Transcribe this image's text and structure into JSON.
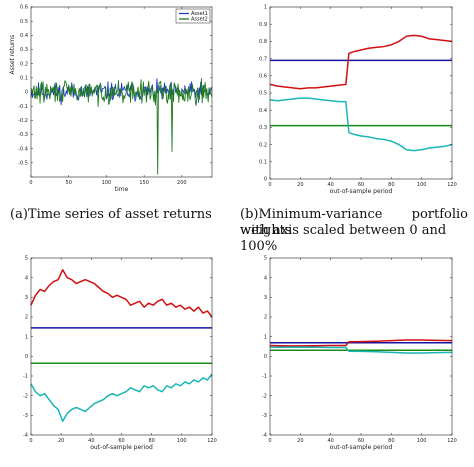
{
  "captions": {
    "a": "(a)Time series of asset returns",
    "b_line1": "(b)Minimum-variance portfolio weights",
    "b_line2": "with axis scaled between 0 and 100%"
  },
  "chart_data": [
    {
      "id": "a",
      "type": "line",
      "xlabel": "time",
      "ylabel": "Asset returns",
      "xlim": [
        0,
        240
      ],
      "ylim": [
        -0.6,
        0.6
      ],
      "xticks": [
        0,
        50,
        100,
        150,
        200
      ],
      "yticks": [
        0.6,
        0.5,
        0.4,
        0.3,
        0.2,
        0.1,
        0,
        -0.1,
        -0.2,
        -0.3,
        -0.4,
        -0.5,
        -0.6
      ],
      "ytick_labels": [
        "0.6",
        "0.5",
        "0.4",
        "0.3",
        "0.2",
        "0.1",
        "0",
        "-0.1",
        "-0.2",
        "-0.3",
        "-0.4",
        "-0.5",
        ""
      ],
      "legend": [
        "Asset1",
        "Asset2"
      ],
      "legend_position": "top-right",
      "series": [
        {
          "name": "Asset1",
          "color": "#1f3fbf",
          "noise": 0.055,
          "seed": 11
        },
        {
          "name": "Asset2",
          "color": "#1e7a1e",
          "noise": 0.065,
          "seed": 29,
          "spikes": [
            [
              168,
              -0.58
            ],
            [
              187,
              -0.42
            ]
          ]
        }
      ]
    },
    {
      "id": "b",
      "type": "line",
      "xlabel": "out-of-sample period",
      "ylabel": "",
      "xlim": [
        0,
        120
      ],
      "ylim": [
        0,
        1
      ],
      "xticks": [
        0,
        20,
        40,
        60,
        80,
        100,
        120
      ],
      "yticks": [
        1,
        0.9,
        0.8,
        0.7,
        0.6,
        0.5,
        0.4,
        0.3,
        0.2,
        0.1,
        0
      ],
      "ytick_labels": [
        "1",
        "0.9",
        "0.8",
        "0.7",
        "0.6",
        "0.5",
        "0.4",
        "0.3",
        "0.2",
        "0.1",
        "0"
      ],
      "series": [
        {
          "name": "",
          "color": "#1414a0",
          "x": [
            0,
            120
          ],
          "y": [
            0.69,
            0.69
          ]
        },
        {
          "name": "",
          "color": "#1a8a1a",
          "x": [
            0,
            120
          ],
          "y": [
            0.31,
            0.31
          ]
        },
        {
          "name": "",
          "color": "#d01010",
          "x": [
            0,
            5,
            10,
            15,
            20,
            25,
            30,
            35,
            40,
            45,
            50,
            52,
            55,
            60,
            65,
            70,
            75,
            80,
            85,
            90,
            95,
            100,
            105,
            110,
            115,
            120
          ],
          "y": [
            0.55,
            0.54,
            0.535,
            0.53,
            0.525,
            0.53,
            0.53,
            0.535,
            0.54,
            0.545,
            0.55,
            0.73,
            0.74,
            0.75,
            0.76,
            0.765,
            0.77,
            0.78,
            0.8,
            0.83,
            0.835,
            0.83,
            0.815,
            0.81,
            0.805,
            0.8
          ]
        },
        {
          "name": "",
          "color": "#1ab5b5",
          "x": [
            0,
            5,
            10,
            15,
            20,
            25,
            30,
            35,
            40,
            45,
            50,
            52,
            55,
            60,
            65,
            70,
            75,
            80,
            85,
            90,
            95,
            100,
            105,
            110,
            115,
            120
          ],
          "y": [
            0.46,
            0.455,
            0.46,
            0.465,
            0.47,
            0.47,
            0.465,
            0.46,
            0.455,
            0.45,
            0.45,
            0.27,
            0.26,
            0.25,
            0.245,
            0.235,
            0.23,
            0.22,
            0.2,
            0.17,
            0.165,
            0.17,
            0.18,
            0.185,
            0.19,
            0.2
          ]
        }
      ]
    },
    {
      "id": "c",
      "type": "line",
      "xlabel": "out-of-sample period",
      "ylabel": "",
      "xlim": [
        0,
        120
      ],
      "ylim": [
        -4,
        5
      ],
      "xticks": [
        0,
        20,
        40,
        60,
        80,
        100,
        120
      ],
      "yticks": [
        5,
        4,
        3,
        2,
        1,
        0,
        -1,
        -2,
        -3,
        -4
      ],
      "ytick_labels": [
        "5",
        "4",
        "3",
        "2",
        "1",
        "0",
        "-1",
        "-2",
        "-3",
        "-4"
      ],
      "series": [
        {
          "name": "",
          "color": "#1414a0",
          "x": [
            0,
            120
          ],
          "y": [
            1.45,
            1.45
          ]
        },
        {
          "name": "",
          "color": "#1a8a1a",
          "x": [
            0,
            120
          ],
          "y": [
            -0.35,
            -0.35
          ]
        },
        {
          "name": "",
          "color": "#d01010",
          "x": [
            0,
            3,
            6,
            9,
            12,
            15,
            18,
            21,
            24,
            27,
            30,
            33,
            36,
            39,
            42,
            45,
            48,
            51,
            54,
            57,
            60,
            63,
            66,
            69,
            72,
            75,
            78,
            81,
            84,
            87,
            90,
            93,
            96,
            99,
            102,
            105,
            108,
            111,
            114,
            117,
            120
          ],
          "y": [
            2.6,
            3.1,
            3.4,
            3.3,
            3.6,
            3.8,
            3.9,
            4.4,
            4.0,
            3.9,
            3.7,
            3.8,
            3.9,
            3.8,
            3.7,
            3.5,
            3.3,
            3.2,
            3.0,
            3.1,
            3.0,
            2.9,
            2.6,
            2.7,
            2.8,
            2.5,
            2.7,
            2.6,
            2.8,
            2.9,
            2.6,
            2.7,
            2.5,
            2.6,
            2.4,
            2.5,
            2.3,
            2.5,
            2.2,
            2.3,
            2.0
          ]
        },
        {
          "name": "",
          "color": "#1ab5b5",
          "x": [
            0,
            3,
            6,
            9,
            12,
            15,
            18,
            21,
            24,
            27,
            30,
            33,
            36,
            39,
            42,
            45,
            48,
            51,
            54,
            57,
            60,
            63,
            66,
            69,
            72,
            75,
            78,
            81,
            84,
            87,
            90,
            93,
            96,
            99,
            102,
            105,
            108,
            111,
            114,
            117,
            120
          ],
          "y": [
            -1.4,
            -1.8,
            -2.0,
            -1.9,
            -2.2,
            -2.5,
            -2.7,
            -3.3,
            -2.9,
            -2.7,
            -2.6,
            -2.7,
            -2.8,
            -2.6,
            -2.4,
            -2.3,
            -2.2,
            -2.0,
            -1.9,
            -2.0,
            -1.9,
            -1.8,
            -1.6,
            -1.7,
            -1.8,
            -1.5,
            -1.6,
            -1.5,
            -1.7,
            -1.8,
            -1.5,
            -1.6,
            -1.4,
            -1.5,
            -1.3,
            -1.4,
            -1.2,
            -1.3,
            -1.1,
            -1.2,
            -0.9
          ]
        }
      ]
    },
    {
      "id": "d",
      "type": "line",
      "xlabel": "out-of-sample period",
      "ylabel": "",
      "xlim": [
        0,
        120
      ],
      "ylim": [
        -4,
        5
      ],
      "xticks": [
        0,
        20,
        40,
        60,
        80,
        100,
        120
      ],
      "yticks": [
        5,
        4,
        3,
        2,
        1,
        0,
        -1,
        -2,
        -3,
        -4
      ],
      "ytick_labels": [
        "5",
        "4",
        "3",
        "2",
        "1",
        "0",
        "-1",
        "-2",
        "-3",
        "-4"
      ],
      "series": [
        {
          "name": "",
          "color": "#1414a0",
          "x": [
            0,
            120
          ],
          "y": [
            0.69,
            0.69
          ]
        },
        {
          "name": "",
          "color": "#1a8a1a",
          "x": [
            0,
            120
          ],
          "y": [
            0.31,
            0.31
          ]
        },
        {
          "name": "",
          "color": "#d01010",
          "x": [
            0,
            10,
            20,
            30,
            40,
            50,
            52,
            60,
            70,
            80,
            90,
            100,
            110,
            120
          ],
          "y": [
            0.55,
            0.53,
            0.53,
            0.54,
            0.55,
            0.55,
            0.74,
            0.75,
            0.77,
            0.8,
            0.83,
            0.83,
            0.81,
            0.8
          ]
        },
        {
          "name": "",
          "color": "#1ab5b5",
          "x": [
            0,
            10,
            20,
            30,
            40,
            50,
            52,
            60,
            70,
            80,
            90,
            100,
            110,
            120
          ],
          "y": [
            0.46,
            0.46,
            0.47,
            0.46,
            0.45,
            0.45,
            0.26,
            0.25,
            0.23,
            0.2,
            0.17,
            0.17,
            0.19,
            0.2
          ]
        }
      ]
    }
  ]
}
